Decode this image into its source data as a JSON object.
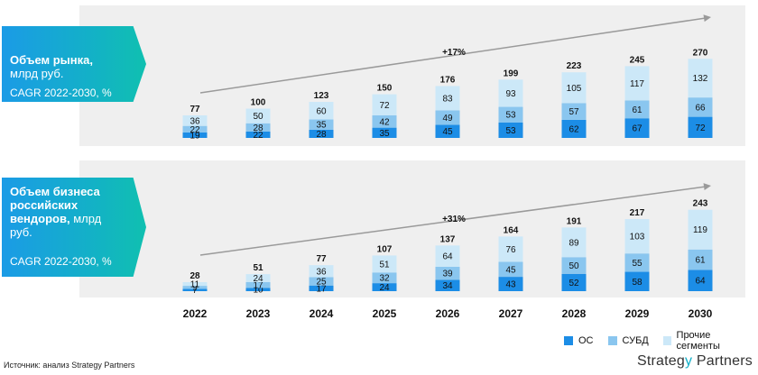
{
  "panel1": {
    "title": "Объем рынка,",
    "subtitle": "млрд руб.",
    "cagr_label": "CAGR 2022-2030, %",
    "cagr_value": "+17%"
  },
  "panel2": {
    "title_line1": "Объем бизнеса",
    "title_line2": "российских",
    "title_line3": "вендоров,",
    "subtitle_a": " млрд",
    "subtitle_b": "руб.",
    "cagr_label": "CAGR 2022-2030, %",
    "cagr_value": "+31%"
  },
  "legend": {
    "os": "ОС",
    "dbms": "СУБД",
    "other": "Прочие сегменты"
  },
  "source": "Источник: анализ Strategy Partners",
  "brand": {
    "part1": "Strateg",
    "part2": "y",
    "part3": " Partners"
  },
  "colors": {
    "os": "#1c8de6",
    "dbms": "#8ac6ef",
    "other": "#cce8f8",
    "badge": "#13b0c8"
  },
  "chart_data": [
    {
      "type": "bar",
      "stacked": true,
      "categories": [
        "2022",
        "2023",
        "2024",
        "2025",
        "2026",
        "2027",
        "2028",
        "2029",
        "2030"
      ],
      "series": [
        {
          "name": "ОС",
          "values": [
            19,
            22,
            28,
            35,
            45,
            53,
            62,
            67,
            72
          ]
        },
        {
          "name": "СУБД",
          "values": [
            22,
            28,
            35,
            42,
            49,
            53,
            57,
            61,
            66
          ]
        },
        {
          "name": "Прочие сегменты",
          "values": [
            36,
            50,
            60,
            72,
            83,
            93,
            105,
            117,
            132
          ]
        }
      ],
      "totals": [
        77,
        100,
        123,
        150,
        176,
        199,
        223,
        245,
        270
      ]
    },
    {
      "type": "bar",
      "stacked": true,
      "categories": [
        "2022",
        "2023",
        "2024",
        "2025",
        "2026",
        "2027",
        "2028",
        "2029",
        "2030"
      ],
      "series": [
        {
          "name": "ОС",
          "values": [
            7,
            10,
            17,
            24,
            34,
            43,
            52,
            58,
            64
          ]
        },
        {
          "name": "СУБД",
          "values": [
            9,
            17,
            25,
            32,
            39,
            45,
            50,
            55,
            61
          ]
        },
        {
          "name": "Прочие сегменты",
          "values": [
            11,
            24,
            36,
            51,
            64,
            76,
            89,
            103,
            119
          ]
        }
      ],
      "totals": [
        28,
        51,
        77,
        107,
        137,
        164,
        191,
        217,
        243
      ]
    }
  ]
}
